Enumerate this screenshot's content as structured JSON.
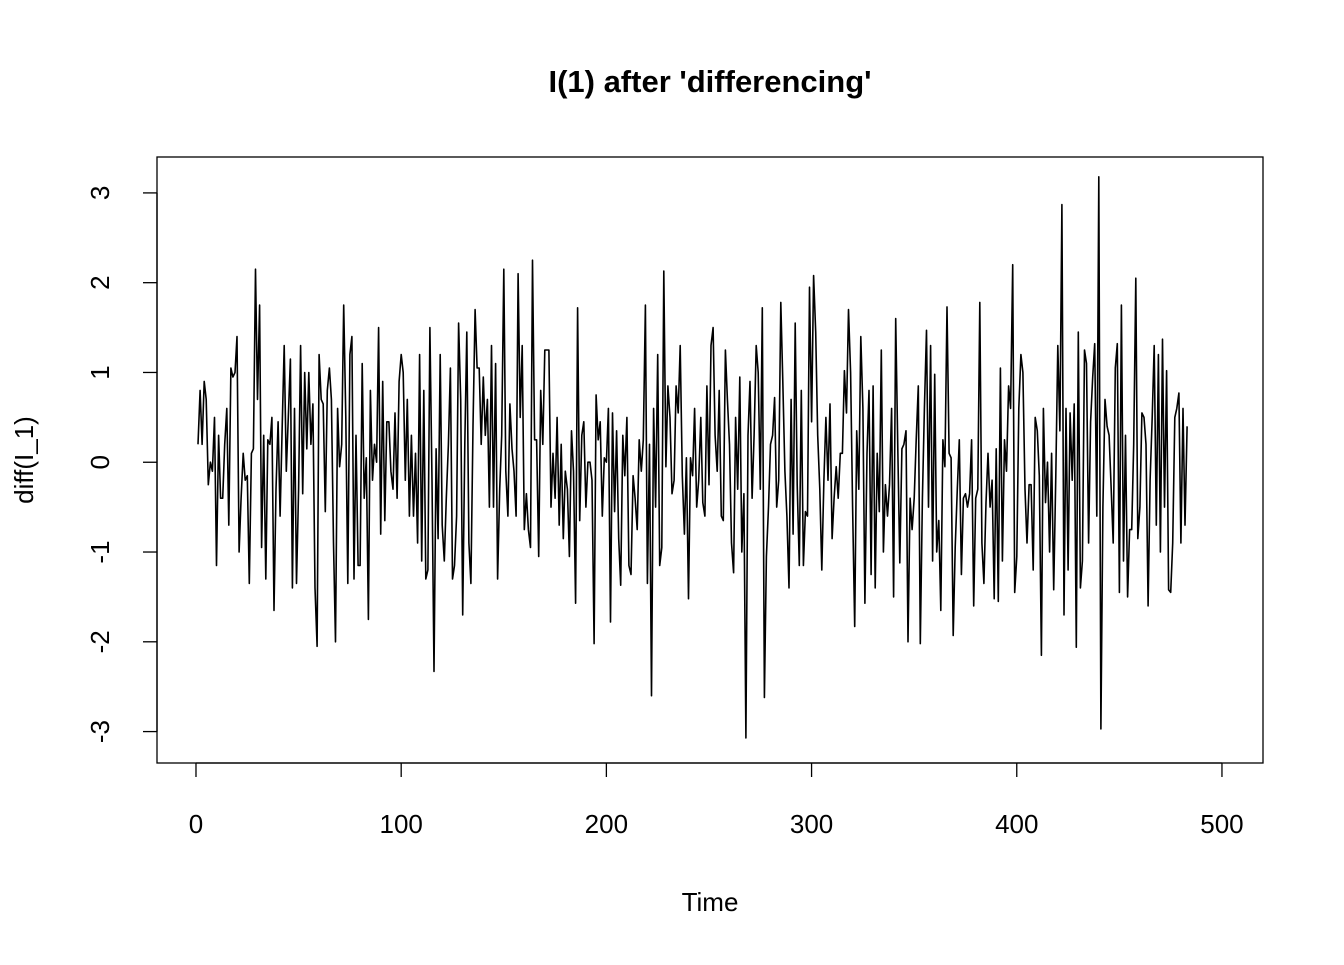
{
  "chart_data": {
    "type": "line",
    "title": "I(1) after 'differencing'",
    "xlabel": "Time",
    "ylabel": "diff(I_1)",
    "xlim": [
      -19,
      520
    ],
    "ylim": [
      -3.35,
      3.4
    ],
    "xticks": [
      0,
      100,
      200,
      300,
      400,
      500
    ],
    "yticks": [
      -3,
      -2,
      -1,
      0,
      1,
      2,
      3
    ],
    "x_start": 1,
    "grid": false,
    "series": [
      {
        "name": "diff(I_1)",
        "color": "#000000",
        "values": [
          0.2,
          0.8,
          0.2,
          0.9,
          0.7,
          -0.25,
          0,
          -0.1,
          0.5,
          -1.15,
          0.3,
          -0.4,
          -0.4,
          0.2,
          0.6,
          -0.7,
          1.05,
          0.95,
          1.0,
          1.4,
          -1.0,
          -0.4,
          0.1,
          -0.2,
          -0.15,
          -1.35,
          0.1,
          0.15,
          2.15,
          0.7,
          1.75,
          -0.95,
          0.3,
          -1.3,
          0.25,
          0.2,
          0.5,
          -1.65,
          -0.3,
          0.45,
          -0.6,
          0.4,
          1.3,
          -0.1,
          0.5,
          1.15,
          -1.4,
          0.6,
          -1.35,
          -0.3,
          1.3,
          -0.35,
          1.0,
          0.15,
          1.0,
          0.2,
          0.65,
          -1.4,
          -2.05,
          1.2,
          0.7,
          0.65,
          -0.55,
          0.8,
          1.05,
          0.7,
          -0.9,
          -2.0,
          0.6,
          -0.05,
          0.2,
          1.75,
          0.5,
          -1.35,
          1.2,
          1.4,
          -1.3,
          0.3,
          -1.15,
          -1.15,
          1.1,
          -0.4,
          0.05,
          -1.75,
          0.8,
          -0.2,
          0.2,
          0,
          1.5,
          -0.8,
          0.9,
          -0.65,
          0.45,
          0.45,
          -0.1,
          -0.3,
          0.55,
          -0.4,
          0.9,
          1.2,
          1.0,
          -0.2,
          0.7,
          -0.6,
          0.3,
          -0.6,
          0.1,
          -0.9,
          1.2,
          -1.1,
          0.8,
          -1.3,
          -1.2,
          1.5,
          -0.2,
          -2.33,
          0.15,
          -0.85,
          1.2,
          -0.7,
          -1.1,
          -0.4,
          0.2,
          1.05,
          -1.3,
          -1.15,
          -0.6,
          1.55,
          0.7,
          -1.7,
          0.2,
          1.45,
          -0.9,
          -1.35,
          0.4,
          1.7,
          1.05,
          1.05,
          0.2,
          0.95,
          0.3,
          0.7,
          -0.5,
          1.3,
          -0.5,
          1.1,
          -1.3,
          -0.3,
          0.3,
          2.15,
          -0.1,
          -0.6,
          0.65,
          0.15,
          -0.1,
          -0.6,
          2.1,
          0.5,
          1.3,
          -0.75,
          -0.35,
          -0.75,
          -0.95,
          2.25,
          0.25,
          0.25,
          -1.05,
          0.8,
          0.2,
          1.25,
          1.25,
          1.25,
          -0.5,
          0.1,
          -0.4,
          0.5,
          -0.7,
          0.2,
          -0.85,
          -0.1,
          -0.3,
          -1.05,
          0.35,
          -0.1,
          -1.57,
          1.72,
          -0.65,
          0.3,
          0.45,
          -0.5,
          0,
          0,
          -0.2,
          -2.02,
          0.75,
          0.25,
          0.45,
          -0.6,
          0.05,
          0,
          0.6,
          -1.78,
          0.55,
          -0.55,
          0.35,
          -0.85,
          -1.37,
          0.3,
          -0.15,
          0.5,
          -1.15,
          -1.25,
          -0.15,
          -0.4,
          -0.75,
          0.25,
          -0.1,
          0.25,
          1.75,
          -1.35,
          0.2,
          -2.6,
          0.6,
          -0.5,
          1.2,
          -1.15,
          -0.95,
          2.13,
          -0.05,
          0.85,
          0.5,
          -0.35,
          -0.2,
          0.85,
          0.55,
          1.3,
          -0.15,
          -0.8,
          0.05,
          -1.52,
          0.05,
          -0.15,
          0.6,
          -0.5,
          -0.2,
          0.5,
          -0.45,
          -0.6,
          0.85,
          -0.25,
          1.3,
          1.5,
          0.3,
          -0.1,
          0.8,
          -0.6,
          -0.65,
          1.25,
          0.7,
          0.2,
          -0.9,
          -1.23,
          0.5,
          -0.3,
          0.95,
          -1.0,
          -0.35,
          -3.07,
          0.3,
          0.9,
          -0.4,
          0.3,
          1.3,
          1.0,
          -0.3,
          1.72,
          -2.62,
          -1.05,
          -0.5,
          0.2,
          0.3,
          0.72,
          -0.5,
          -0.2,
          1.78,
          0.9,
          -0.1,
          -0.6,
          -1.4,
          0.7,
          -0.8,
          1.55,
          -0.25,
          -1.15,
          0.8,
          -1.15,
          -0.55,
          -0.6,
          1.95,
          0.45,
          2.08,
          1.45,
          0.3,
          -0.3,
          -1.2,
          -0.2,
          0.5,
          -0.2,
          0.65,
          -0.85,
          -0.4,
          -0.05,
          -0.4,
          0.1,
          0.1,
          1.02,
          0.55,
          1.7,
          1.0,
          -0.5,
          -1.83,
          0.35,
          -0.3,
          1.4,
          0.6,
          -1.57,
          0.1,
          0.8,
          -1.25,
          0.85,
          -1.4,
          0.1,
          -0.55,
          1.25,
          -1.0,
          -0.25,
          -0.6,
          -0.25,
          0.6,
          -1.5,
          1.6,
          0.15,
          -1.12,
          0.15,
          0.2,
          0.35,
          -2.0,
          -0.4,
          -0.75,
          -0.4,
          0.25,
          0.85,
          -2.02,
          -0.4,
          0.6,
          1.47,
          -0.5,
          1.3,
          -1.1,
          0.98,
          -1.0,
          -0.65,
          -1.65,
          0.25,
          -0.05,
          1.73,
          0.1,
          0.05,
          -1.93,
          -0.95,
          -0.3,
          0.25,
          -1.25,
          -0.4,
          -0.35,
          -0.5,
          -0.35,
          0.25,
          -1.6,
          -0.4,
          -0.3,
          1.78,
          -0.9,
          -1.35,
          -0.45,
          0.1,
          -0.5,
          -0.2,
          -1.52,
          0.15,
          -1.55,
          1.05,
          -1.1,
          0.25,
          -0.1,
          0.85,
          0.6,
          2.2,
          -1.45,
          -1.05,
          0.6,
          1.2,
          1.0,
          -0.3,
          -0.9,
          -0.25,
          -0.25,
          -1.2,
          0.5,
          0.35,
          -0.15,
          -2.15,
          0.6,
          -0.45,
          0,
          -1.0,
          0.1,
          -1.42,
          -0.15,
          1.3,
          0.35,
          2.87,
          -1.7,
          0.6,
          -1.2,
          0.55,
          -0.2,
          0.65,
          -2.06,
          1.45,
          -1.4,
          -1.1,
          1.25,
          1.1,
          -0.9,
          0.45,
          0.95,
          1.32,
          -0.6,
          3.18,
          -2.97,
          -0.5,
          0.7,
          0.4,
          0.3,
          -0.3,
          -0.9,
          1.05,
          1.32,
          -1.45,
          1.75,
          -1.1,
          0.3,
          -1.5,
          -0.75,
          -0.75,
          0.2,
          2.05,
          -0.85,
          -0.5,
          0.55,
          0.5,
          0.2,
          -1.6,
          -0.2,
          0.5,
          1.3,
          -0.7,
          1.2,
          -1.0,
          1.37,
          -0.5,
          1.02,
          -1.42,
          -1.45,
          -0.9,
          0.5,
          0.6,
          0.77,
          -0.9,
          0.6,
          -0.7,
          0.4
        ]
      }
    ]
  }
}
